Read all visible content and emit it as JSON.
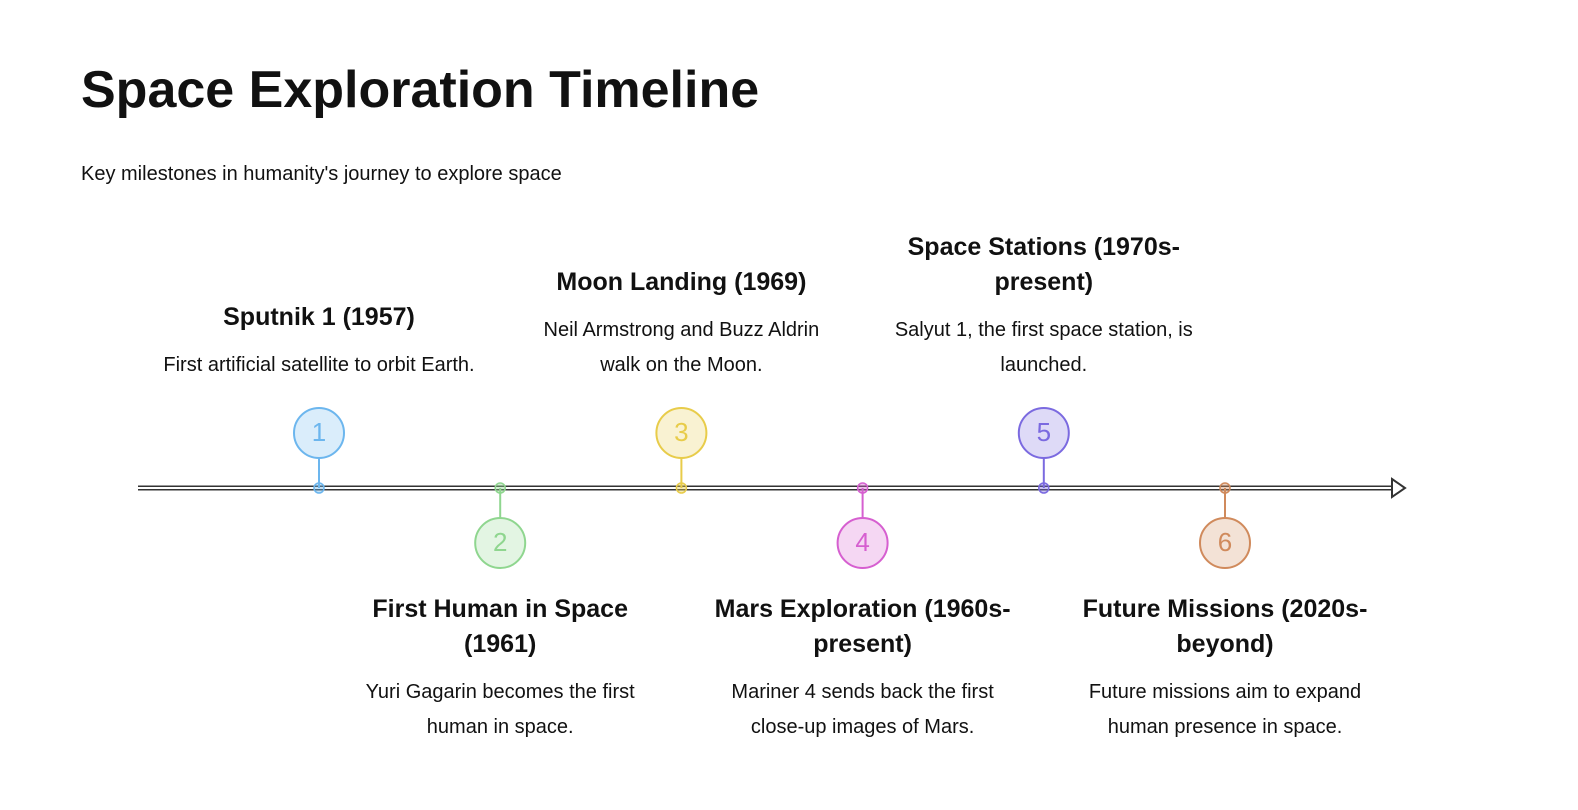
{
  "header": {
    "title": "Space Exploration Timeline",
    "subtitle": "Key milestones in humanity's journey to explore space"
  },
  "events": [
    {
      "number": 1,
      "title": "Sputnik 1 (1957)",
      "description": "First artificial satellite to orbit Earth.",
      "color": "#6cb6ee"
    },
    {
      "number": 2,
      "title": "First Human in Space (1961)",
      "description": "Yuri Gagarin becomes the first human in space.",
      "color": "#8fd68f"
    },
    {
      "number": 3,
      "title": "Moon Landing (1969)",
      "description": "Neil Armstrong and Buzz Aldrin walk on the Moon.",
      "color": "#e8cc4a"
    },
    {
      "number": 4,
      "title": "Mars Exploration (1960s-present)",
      "description": "Mariner 4 sends back the first close-up images of Mars.",
      "color": "#d65fd0"
    },
    {
      "number": 5,
      "title": "Space Stations (1970s-present)",
      "description": "Salyut 1, the first space station, is launched.",
      "color": "#7b6ae0"
    },
    {
      "number": 6,
      "title": "Future Missions (2020s-beyond)",
      "description": "Future missions aim to expand human presence in space.",
      "color": "#d08a5c"
    }
  ]
}
